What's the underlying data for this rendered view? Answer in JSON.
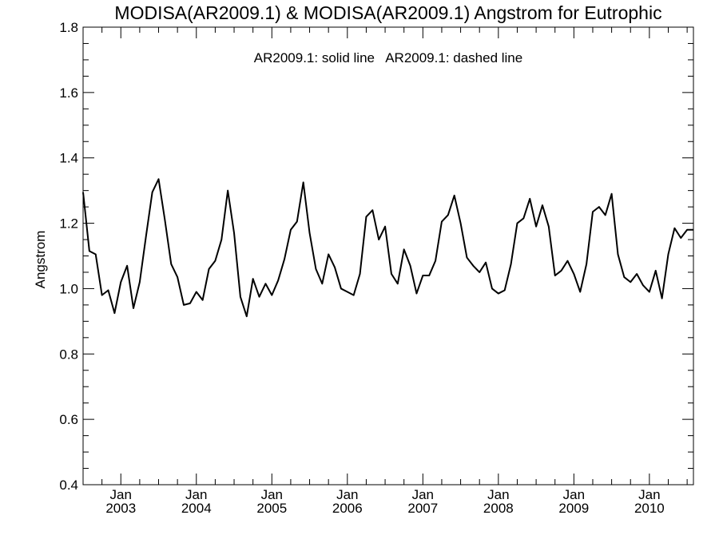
{
  "chart_data": {
    "type": "line",
    "title": "MODISA(AR2009.1) & MODISA(AR2009.1)  Angstrom for Eutrophic",
    "annotation": "AR2009.1: solid line   AR2009.1: dashed line",
    "xlabel": "",
    "ylabel": "Angstrom",
    "ylim": [
      0.4,
      1.8
    ],
    "xlim": [
      "2002-07",
      "2010-08"
    ],
    "y_ticks": [
      "0.4",
      "0.6",
      "0.8",
      "1.0",
      "1.2",
      "1.4",
      "1.6",
      "1.8"
    ],
    "x_ticks": [
      {
        "month": "Jan",
        "year": "2003",
        "date": "2003-01"
      },
      {
        "month": "Jan",
        "year": "2004",
        "date": "2004-01"
      },
      {
        "month": "Jan",
        "year": "2005",
        "date": "2005-01"
      },
      {
        "month": "Jan",
        "year": "2006",
        "date": "2006-01"
      },
      {
        "month": "Jan",
        "year": "2007",
        "date": "2007-01"
      },
      {
        "month": "Jan",
        "year": "2008",
        "date": "2008-01"
      },
      {
        "month": "Jan",
        "year": "2009",
        "date": "2009-01"
      },
      {
        "month": "Jan",
        "year": "2010",
        "date": "2010-01"
      }
    ],
    "grid": false,
    "series": [
      {
        "style": "solid",
        "color": "#000000",
        "x": [
          "2002-07",
          "2002-08",
          "2002-09",
          "2002-10",
          "2002-11",
          "2002-12",
          "2003-01",
          "2003-02",
          "2003-03",
          "2003-04",
          "2003-05",
          "2003-06",
          "2003-07",
          "2003-08",
          "2003-09",
          "2003-10",
          "2003-11",
          "2003-12",
          "2004-01",
          "2004-02",
          "2004-03",
          "2004-04",
          "2004-05",
          "2004-06",
          "2004-07",
          "2004-08",
          "2004-09",
          "2004-10",
          "2004-11",
          "2004-12",
          "2005-01",
          "2005-02",
          "2005-03",
          "2005-04",
          "2005-05",
          "2005-06",
          "2005-07",
          "2005-08",
          "2005-09",
          "2005-10",
          "2005-11",
          "2005-12",
          "2006-01",
          "2006-02",
          "2006-03",
          "2006-04",
          "2006-05",
          "2006-06",
          "2006-07",
          "2006-08",
          "2006-09",
          "2006-10",
          "2006-11",
          "2006-12",
          "2007-01",
          "2007-02",
          "2007-03",
          "2007-04",
          "2007-05",
          "2007-06",
          "2007-07",
          "2007-08",
          "2007-09",
          "2007-10",
          "2007-11",
          "2007-12",
          "2008-01",
          "2008-02",
          "2008-03",
          "2008-04",
          "2008-05",
          "2008-06",
          "2008-07",
          "2008-08",
          "2008-09",
          "2008-10",
          "2008-11",
          "2008-12",
          "2009-01",
          "2009-02",
          "2009-03",
          "2009-04",
          "2009-05",
          "2009-06",
          "2009-07",
          "2009-08",
          "2009-09",
          "2009-10",
          "2009-11",
          "2009-12",
          "2010-01",
          "2010-02",
          "2010-03",
          "2010-04",
          "2010-05",
          "2010-06",
          "2010-07",
          "2010-08"
        ],
        "y": [
          1.295,
          1.115,
          1.105,
          0.98,
          0.995,
          0.925,
          1.02,
          1.07,
          0.94,
          1.02,
          1.16,
          1.295,
          1.335,
          1.21,
          1.075,
          1.035,
          0.95,
          0.955,
          0.99,
          0.965,
          1.06,
          1.085,
          1.15,
          1.3,
          1.17,
          0.975,
          0.915,
          1.03,
          0.975,
          1.015,
          0.98,
          1.025,
          1.09,
          1.18,
          1.205,
          1.325,
          1.17,
          1.06,
          1.015,
          1.105,
          1.065,
          1.0,
          0.99,
          0.98,
          1.045,
          1.22,
          1.24,
          1.15,
          1.19,
          1.045,
          1.015,
          1.12,
          1.07,
          0.985,
          1.04,
          1.04,
          1.085,
          1.205,
          1.225,
          1.285,
          1.2,
          1.095,
          1.07,
          1.05,
          1.08,
          1.0,
          0.985,
          0.995,
          1.075,
          1.2,
          1.215,
          1.275,
          1.19,
          1.255,
          1.19,
          1.04,
          1.055,
          1.085,
          1.045,
          0.99,
          1.075,
          1.235,
          1.25,
          1.225,
          1.29,
          1.105,
          1.035,
          1.02,
          1.045,
          1.01,
          0.99,
          1.055,
          0.97,
          1.105,
          1.185,
          1.155,
          1.18,
          1.18
        ]
      }
    ]
  }
}
